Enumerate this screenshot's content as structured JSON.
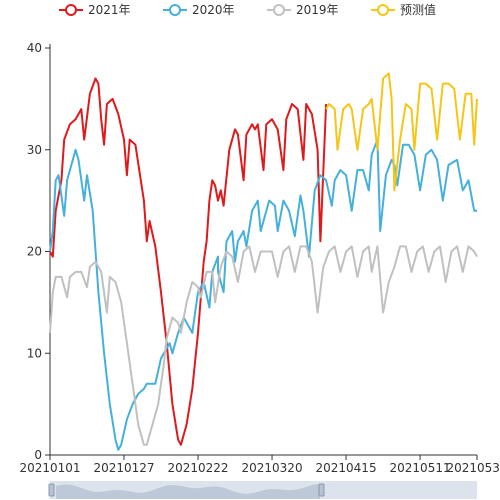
{
  "chart_data": {
    "type": "line",
    "title": "",
    "xlabel": "",
    "ylabel": "",
    "ylim": [
      0,
      40
    ],
    "yticks": [
      0,
      10,
      20,
      30,
      40
    ],
    "xticks": [
      "20210101",
      "20210127",
      "20210222",
      "20210320",
      "20210415",
      "20210511",
      "20210531"
    ],
    "x_start": "20210101",
    "x_end": "20210531",
    "grid": false,
    "legend_position": "top-center",
    "series": [
      {
        "name": "2021年",
        "color": "#e0191b",
        "points": [
          [
            "20210101",
            20
          ],
          [
            "20210102",
            19.5
          ],
          [
            "20210103",
            24
          ],
          [
            "20210105",
            27
          ],
          [
            "20210106",
            31
          ],
          [
            "20210108",
            32.5
          ],
          [
            "20210110",
            33
          ],
          [
            "20210112",
            34
          ],
          [
            "20210113",
            31
          ],
          [
            "20210115",
            35.5
          ],
          [
            "20210117",
            37
          ],
          [
            "20210118",
            36.5
          ],
          [
            "20210119",
            33
          ],
          [
            "20210120",
            30.5
          ],
          [
            "20210121",
            34.5
          ],
          [
            "20210123",
            35
          ],
          [
            "20210125",
            33.5
          ],
          [
            "20210127",
            31
          ],
          [
            "20210128",
            27.5
          ],
          [
            "20210129",
            31
          ],
          [
            "20210131",
            30.5
          ],
          [
            "20210203",
            25
          ],
          [
            "20210204",
            21
          ],
          [
            "20210205",
            23
          ],
          [
            "20210207",
            20.5
          ],
          [
            "20210209",
            16
          ],
          [
            "20210211",
            11
          ],
          [
            "20210213",
            5
          ],
          [
            "20210215",
            1.5
          ],
          [
            "20210216",
            1
          ],
          [
            "20210218",
            3
          ],
          [
            "20210220",
            6.5
          ],
          [
            "20210222",
            12
          ],
          [
            "20210224",
            19
          ],
          [
            "20210225",
            21
          ],
          [
            "20210226",
            25
          ],
          [
            "20210227",
            27
          ],
          [
            "20210228",
            26.5
          ],
          [
            "20210301",
            25
          ],
          [
            "20210302",
            26
          ],
          [
            "20210303",
            24.5
          ],
          [
            "20210305",
            30
          ],
          [
            "20210307",
            32
          ],
          [
            "20210308",
            31.5
          ],
          [
            "20210310",
            27
          ],
          [
            "20210311",
            31.5
          ],
          [
            "20210313",
            32.5
          ],
          [
            "20210314",
            32
          ],
          [
            "20210315",
            32.5
          ],
          [
            "20210317",
            28
          ],
          [
            "20210318",
            32.5
          ],
          [
            "20210320",
            33
          ],
          [
            "20210322",
            32
          ],
          [
            "20210324",
            28
          ],
          [
            "20210325",
            33
          ],
          [
            "20210327",
            34.5
          ],
          [
            "20210329",
            34
          ],
          [
            "20210331",
            29
          ],
          [
            "20210401",
            34.5
          ],
          [
            "20210403",
            33.5
          ],
          [
            "20210405",
            30
          ],
          [
            "20210406",
            21
          ],
          [
            "20210408",
            34.5
          ]
        ]
      },
      {
        "name": "2020年",
        "color": "#45b0dc",
        "points": [
          [
            "20210101",
            20
          ],
          [
            "20210102",
            22
          ],
          [
            "20210103",
            27
          ],
          [
            "20210104",
            27.5
          ],
          [
            "20210106",
            23.5
          ],
          [
            "20210107",
            27
          ],
          [
            "20210109",
            29
          ],
          [
            "20210110",
            30
          ],
          [
            "20210111",
            29
          ],
          [
            "20210113",
            25
          ],
          [
            "20210114",
            27.5
          ],
          [
            "20210116",
            24
          ],
          [
            "20210118",
            16
          ],
          [
            "20210120",
            10
          ],
          [
            "20210122",
            5
          ],
          [
            "20210124",
            1.5
          ],
          [
            "20210125",
            0.5
          ],
          [
            "20210126",
            1
          ],
          [
            "20210128",
            3.5
          ],
          [
            "20210130",
            5
          ],
          [
            "20210201",
            6
          ],
          [
            "20210203",
            6.5
          ],
          [
            "20210204",
            7
          ],
          [
            "20210205",
            7
          ],
          [
            "20210207",
            7
          ],
          [
            "20210209",
            9.5
          ],
          [
            "20210211",
            10.5
          ],
          [
            "20210212",
            11
          ],
          [
            "20210213",
            10
          ],
          [
            "20210215",
            12
          ],
          [
            "20210217",
            13.5
          ],
          [
            "20210218",
            13
          ],
          [
            "20210220",
            12
          ],
          [
            "20210222",
            16
          ],
          [
            "20210224",
            17
          ],
          [
            "20210226",
            14.5
          ],
          [
            "20210227",
            18
          ],
          [
            "20210229",
            19.5
          ],
          [
            "20210301",
            18
          ],
          [
            "20210303",
            16
          ],
          [
            "20210304",
            21
          ],
          [
            "20210306",
            22
          ],
          [
            "20210307",
            19
          ],
          [
            "20210308",
            21
          ],
          [
            "20210310",
            22
          ],
          [
            "20210311",
            20.5
          ],
          [
            "20210313",
            24
          ],
          [
            "20210315",
            25
          ],
          [
            "20210316",
            22
          ],
          [
            "20210317",
            23
          ],
          [
            "20210319",
            25
          ],
          [
            "20210321",
            24.5
          ],
          [
            "20210322",
            22
          ],
          [
            "20210324",
            25
          ],
          [
            "20210326",
            24
          ],
          [
            "20210328",
            21.5
          ],
          [
            "20210330",
            25.5
          ],
          [
            "20210331",
            24
          ],
          [
            "20210402",
            19.5
          ],
          [
            "20210404",
            26
          ],
          [
            "20210406",
            27.5
          ],
          [
            "20210408",
            27
          ],
          [
            "20210410",
            24.5
          ],
          [
            "20210411",
            27
          ],
          [
            "20210413",
            28
          ],
          [
            "20210415",
            27.5
          ],
          [
            "20210417",
            24
          ],
          [
            "20210419",
            28
          ],
          [
            "20210421",
            28
          ],
          [
            "20210423",
            26
          ],
          [
            "20210424",
            29.5
          ],
          [
            "20210426",
            31
          ],
          [
            "20210427",
            22
          ],
          [
            "20210429",
            27.5
          ],
          [
            "20210501",
            29
          ],
          [
            "20210502",
            28.5
          ],
          [
            "20210503",
            26.5
          ],
          [
            "20210505",
            30.5
          ],
          [
            "20210507",
            30.5
          ],
          [
            "20210509",
            29.5
          ],
          [
            "20210511",
            26
          ],
          [
            "20210513",
            29.5
          ],
          [
            "20210515",
            30
          ],
          [
            "20210517",
            29
          ],
          [
            "20210519",
            25
          ],
          [
            "20210521",
            28.5
          ],
          [
            "20210524",
            29
          ],
          [
            "20210526",
            26
          ],
          [
            "20210528",
            27
          ],
          [
            "20210530",
            24
          ],
          [
            "20210531",
            24
          ]
        ]
      },
      {
        "name": "2019年",
        "color": "#c0c0c0",
        "points": [
          [
            "20210101",
            12
          ],
          [
            "20210102",
            16
          ],
          [
            "20210103",
            17.5
          ],
          [
            "20210105",
            17.5
          ],
          [
            "20210107",
            15.5
          ],
          [
            "20210108",
            17.5
          ],
          [
            "20210110",
            18
          ],
          [
            "20210112",
            18
          ],
          [
            "20210114",
            16.5
          ],
          [
            "20210115",
            18.5
          ],
          [
            "20210117",
            19
          ],
          [
            "20210119",
            18
          ],
          [
            "20210121",
            14
          ],
          [
            "20210122",
            17.5
          ],
          [
            "20210124",
            17
          ],
          [
            "20210126",
            15
          ],
          [
            "20210128",
            11
          ],
          [
            "20210130",
            7
          ],
          [
            "20210201",
            3
          ],
          [
            "20210203",
            1
          ],
          [
            "20210204",
            1
          ],
          [
            "20210206",
            3
          ],
          [
            "20210208",
            5
          ],
          [
            "20210210",
            9
          ],
          [
            "20210211",
            11.5
          ],
          [
            "20210213",
            13.5
          ],
          [
            "20210215",
            13
          ],
          [
            "20210216",
            12
          ],
          [
            "20210218",
            15
          ],
          [
            "20210220",
            17
          ],
          [
            "20210222",
            16.5
          ],
          [
            "20210223",
            15.5
          ],
          [
            "20210225",
            18
          ],
          [
            "20210227",
            18
          ],
          [
            "20210228",
            15
          ],
          [
            "20210302",
            18.5
          ],
          [
            "20210304",
            20
          ],
          [
            "20210306",
            19.5
          ],
          [
            "20210308",
            17
          ],
          [
            "20210310",
            20
          ],
          [
            "20210312",
            20.5
          ],
          [
            "20210314",
            18
          ],
          [
            "20210316",
            20
          ],
          [
            "20210318",
            20
          ],
          [
            "20210320",
            20
          ],
          [
            "20210322",
            17.5
          ],
          [
            "20210324",
            20
          ],
          [
            "20210326",
            20.5
          ],
          [
            "20210328",
            18
          ],
          [
            "20210330",
            20.5
          ],
          [
            "20210401",
            20.5
          ],
          [
            "20210403",
            19
          ],
          [
            "20210405",
            14
          ],
          [
            "20210407",
            18.5
          ],
          [
            "20210409",
            20
          ],
          [
            "20210411",
            20.5
          ],
          [
            "20210413",
            18
          ],
          [
            "20210415",
            20
          ],
          [
            "20210417",
            20.5
          ],
          [
            "20210419",
            17.5
          ],
          [
            "20210421",
            20
          ],
          [
            "20210423",
            20.5
          ],
          [
            "20210424",
            18
          ],
          [
            "20210426",
            20.5
          ],
          [
            "20210428",
            14
          ],
          [
            "20210430",
            17
          ],
          [
            "20210502",
            18.5
          ],
          [
            "20210504",
            20.5
          ],
          [
            "20210506",
            20.5
          ],
          [
            "20210508",
            18
          ],
          [
            "20210510",
            20
          ],
          [
            "20210512",
            20.5
          ],
          [
            "20210514",
            18
          ],
          [
            "20210516",
            20
          ],
          [
            "20210518",
            20.5
          ],
          [
            "20210520",
            17
          ],
          [
            "20210522",
            20
          ],
          [
            "20210524",
            20.5
          ],
          [
            "20210526",
            18
          ],
          [
            "20210528",
            20.5
          ],
          [
            "20210530",
            20
          ],
          [
            "20210531",
            19.5
          ]
        ]
      },
      {
        "name": "预测值",
        "color": "#f5c518",
        "points": [
          [
            "20210408",
            34
          ],
          [
            "20210409",
            34.5
          ],
          [
            "20210411",
            34
          ],
          [
            "20210412",
            30
          ],
          [
            "20210414",
            34
          ],
          [
            "20210416",
            34.5
          ],
          [
            "20210417",
            34
          ],
          [
            "20210419",
            30
          ],
          [
            "20210421",
            34
          ],
          [
            "20210423",
            34.5
          ],
          [
            "20210424",
            35
          ],
          [
            "20210426",
            30
          ],
          [
            "20210428",
            37
          ],
          [
            "20210430",
            37.5
          ],
          [
            "20210501",
            35
          ],
          [
            "20210502",
            26
          ],
          [
            "20210504",
            31
          ],
          [
            "20210506",
            34.5
          ],
          [
            "20210508",
            34
          ],
          [
            "20210509",
            30
          ],
          [
            "20210511",
            36.5
          ],
          [
            "20210513",
            36.5
          ],
          [
            "20210515",
            36
          ],
          [
            "20210517",
            31
          ],
          [
            "20210519",
            36.5
          ],
          [
            "20210521",
            36.5
          ],
          [
            "20210523",
            36
          ],
          [
            "20210525",
            31
          ],
          [
            "20210527",
            35.5
          ],
          [
            "20210529",
            35.5
          ],
          [
            "20210530",
            30.5
          ],
          [
            "20210531",
            35
          ]
        ]
      }
    ]
  },
  "colors": {
    "axis": "#333333",
    "slider_bg": "#dde3ec",
    "slider_fill": "#a9b7cc"
  }
}
